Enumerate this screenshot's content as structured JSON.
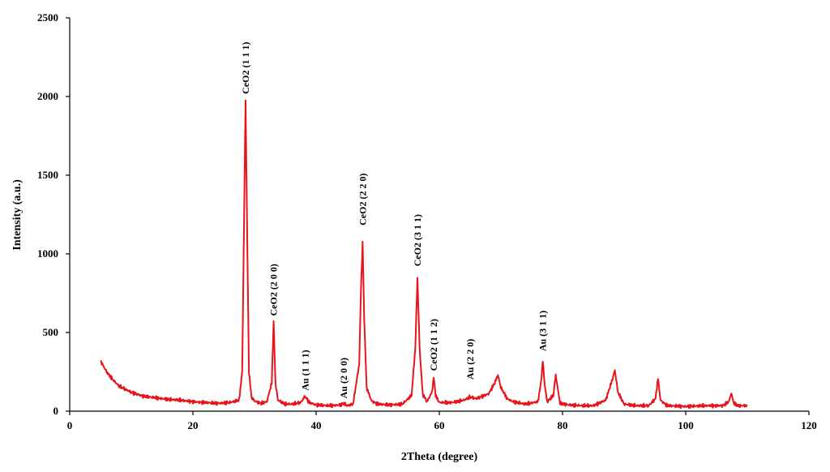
{
  "chart_data": {
    "type": "line",
    "title": "",
    "xlabel": "2Theta (degree)",
    "ylabel": "Intensity (a.u.)",
    "xlim": [
      0,
      120
    ],
    "ylim": [
      0,
      2500
    ],
    "xticks": [
      0,
      20,
      40,
      60,
      80,
      100,
      120
    ],
    "yticks": [
      0,
      500,
      1000,
      1500,
      2000,
      2500
    ],
    "grid": false,
    "legend": "none",
    "series": [
      {
        "color": "#e8141b",
        "x": [
          5,
          6,
          7,
          8,
          10,
          12,
          14,
          16,
          18,
          20,
          22,
          24,
          26,
          27.5,
          28.0,
          28.3,
          28.55,
          28.8,
          29.1,
          29.5,
          30,
          31,
          32,
          32.8,
          33.1,
          33.4,
          33.8,
          35,
          36,
          37.5,
          38.2,
          38.9,
          40,
          42,
          44,
          44.5,
          45,
          46,
          47.0,
          47.3,
          47.55,
          47.8,
          48.2,
          49,
          50,
          52,
          54,
          55.5,
          56.1,
          56.45,
          56.8,
          57.3,
          58,
          58.8,
          59.1,
          59.4,
          60,
          62,
          64,
          65,
          66,
          68,
          69.0,
          69.5,
          70.0,
          71,
          72,
          74,
          76,
          76.5,
          76.8,
          77.1,
          77.5,
          78.5,
          78.9,
          79.2,
          79.6,
          81,
          83,
          85,
          87,
          88.0,
          88.5,
          89.0,
          90,
          92,
          94,
          95.1,
          95.5,
          95.9,
          97,
          100,
          103,
          106,
          107.0,
          107.4,
          107.8,
          108.5,
          110
        ],
        "values": [
          320,
          250,
          200,
          160,
          120,
          95,
          85,
          75,
          70,
          60,
          55,
          50,
          55,
          70,
          250,
          1200,
          1980,
          1150,
          250,
          90,
          65,
          50,
          60,
          180,
          570,
          180,
          70,
          45,
          45,
          55,
          95,
          55,
          40,
          35,
          40,
          50,
          35,
          45,
          300,
          800,
          1070,
          600,
          150,
          65,
          45,
          40,
          45,
          100,
          400,
          850,
          400,
          110,
          60,
          120,
          215,
          100,
          55,
          55,
          70,
          90,
          80,
          110,
          180,
          230,
          150,
          80,
          60,
          45,
          60,
          180,
          320,
          170,
          60,
          100,
          230,
          150,
          50,
          40,
          35,
          35,
          70,
          190,
          260,
          120,
          45,
          35,
          35,
          80,
          210,
          70,
          35,
          30,
          35,
          35,
          60,
          115,
          50,
          35,
          35
        ]
      }
    ],
    "annotations": [
      {
        "text": "CeO2 (1 1 1)",
        "x": 28.55,
        "y": 1995
      },
      {
        "text": "CeO2 (2 0 0)",
        "x": 33.1,
        "y": 585
      },
      {
        "text": "Au (1 1 1)",
        "x": 38.2,
        "y": 110
      },
      {
        "text": "Au (2 0 0)",
        "x": 44.5,
        "y": 60
      },
      {
        "text": "CeO2 (2 2 0)",
        "x": 47.55,
        "y": 1160
      },
      {
        "text": "CeO2 (3 1 1)",
        "x": 56.45,
        "y": 900
      },
      {
        "text": "CeO2 (1 1 2)",
        "x": 59.1,
        "y": 235
      },
      {
        "text": "Au (2 2 0)",
        "x": 65,
        "y": 180
      },
      {
        "text": "Au (3 1 1)",
        "x": 76.8,
        "y": 360
      }
    ]
  }
}
